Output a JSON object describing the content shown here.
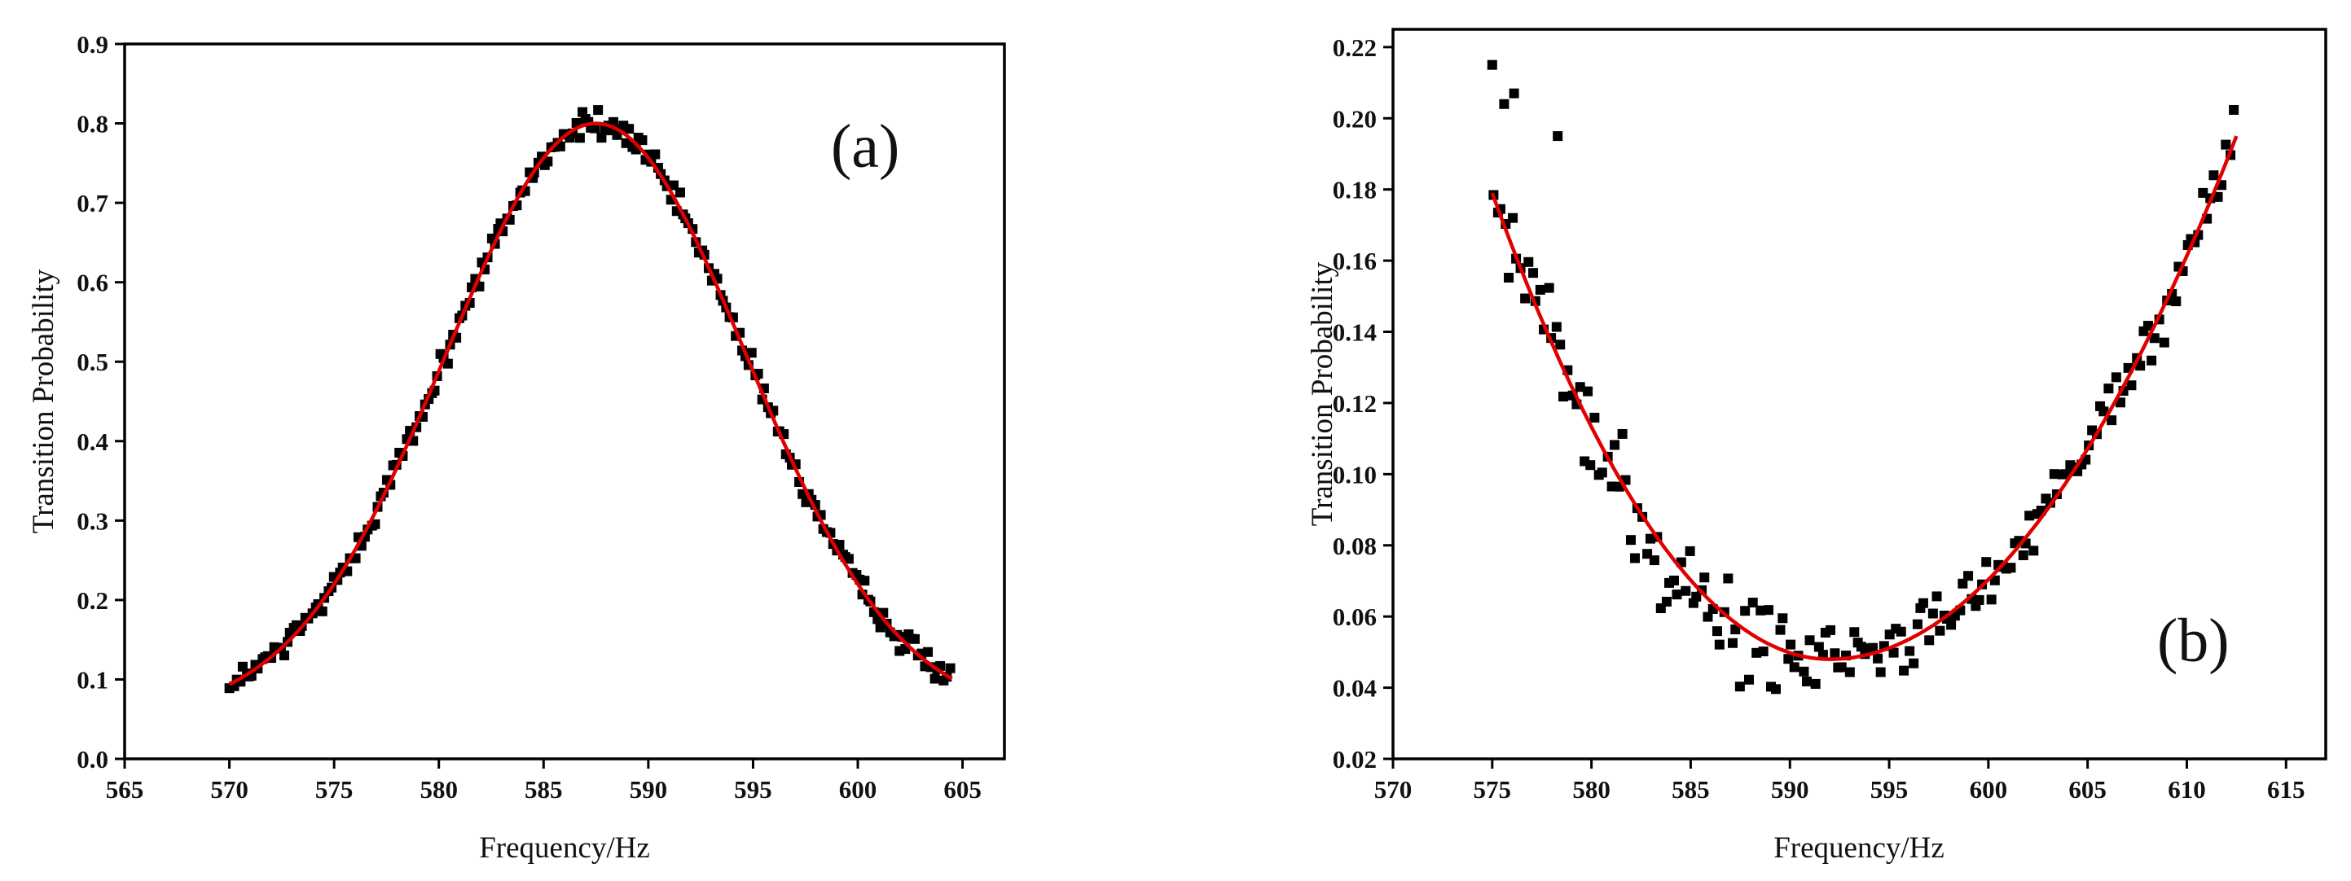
{
  "colors": {
    "points": "#000000",
    "fit": "#e00000",
    "axes": "#000000"
  },
  "chart_data": [
    {
      "id": "a",
      "type": "scatter",
      "panel_label": "(a)",
      "legend_position": "none",
      "xlabel": "Frequency/Hz",
      "ylabel": "Transition Probability",
      "xlim": [
        565,
        607
      ],
      "ylim": [
        0.0,
        0.9
      ],
      "x_ticks": [
        "565",
        "570",
        "575",
        "580",
        "585",
        "590",
        "595",
        "600",
        "605"
      ],
      "y_ticks": [
        "0.0",
        "0.1",
        "0.2",
        "0.3",
        "0.4",
        "0.5",
        "0.6",
        "0.7",
        "0.8",
        "0.9"
      ],
      "data_range": [
        570,
        604.5
      ],
      "fit": {
        "shape": "gaussian",
        "center": 587.5,
        "sigma": 7.2,
        "amplitude": 0.745,
        "offset": 0.055
      },
      "series": [
        {
          "name": "measured",
          "style": "squares"
        },
        {
          "name": "fit",
          "style": "line"
        }
      ]
    },
    {
      "id": "b",
      "type": "scatter",
      "panel_label": "(b)",
      "legend_position": "none",
      "xlabel": "Frequency/Hz",
      "ylabel": "Transition Probability",
      "xlim": [
        570,
        617
      ],
      "ylim": [
        0.02,
        0.225
      ],
      "x_ticks": [
        "570",
        "575",
        "580",
        "585",
        "590",
        "595",
        "600",
        "605",
        "610",
        "615"
      ],
      "y_ticks": [
        "0.02",
        "0.04",
        "0.06",
        "0.08",
        "0.10",
        "0.12",
        "0.14",
        "0.16",
        "0.18",
        "0.20",
        "0.22"
      ],
      "data_range": [
        575,
        612.5
      ],
      "fit": {
        "shape": "quadratic",
        "vertex_x": 592,
        "vertex_y": 0.048,
        "left_end": [
          575,
          0.179
        ],
        "right_end": [
          612.5,
          0.195
        ]
      },
      "outliers": [
        [
          575,
          0.215
        ],
        [
          575.6,
          0.204
        ],
        [
          576.1,
          0.207
        ],
        [
          578.3,
          0.195
        ]
      ],
      "series": [
        {
          "name": "measured",
          "style": "squares"
        },
        {
          "name": "fit",
          "style": "line"
        }
      ]
    }
  ]
}
